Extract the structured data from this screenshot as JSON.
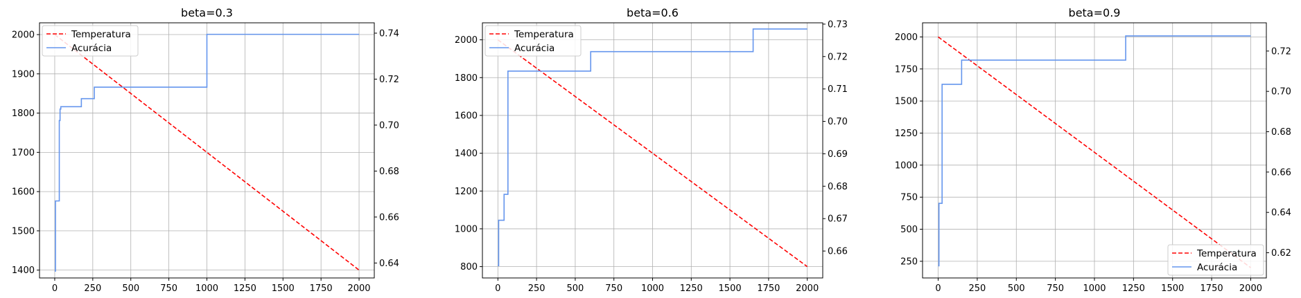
{
  "chart_data": [
    {
      "type": "line",
      "title": "beta=0.3",
      "grid": true,
      "legend_position": "top-left",
      "xlim": [
        -100,
        2100
      ],
      "xticks": [
        0,
        250,
        500,
        750,
        1000,
        1250,
        1500,
        1750,
        2000
      ],
      "ylim_left": [
        1380,
        2030
      ],
      "yticks_left": [
        1400,
        1500,
        1600,
        1700,
        1800,
        1900,
        2000
      ],
      "ylim_right": [
        0.6335,
        0.7445
      ],
      "yticks_right": [
        0.64,
        0.66,
        0.68,
        0.7,
        0.72,
        0.74
      ],
      "series": [
        {
          "name": "Temperatura",
          "axis": "left",
          "style": "dashed",
          "color": "#ff0000",
          "x": [
            0,
            2000
          ],
          "y": [
            2000,
            1400
          ]
        },
        {
          "name": "Acurácia",
          "axis": "right",
          "style": "step",
          "color": "#6495ed",
          "x": [
            0,
            5,
            30,
            35,
            40,
            175,
            260,
            1000,
            2000
          ],
          "y": [
            0.6365,
            0.667,
            0.702,
            0.707,
            0.708,
            0.7115,
            0.7165,
            0.7395,
            0.7395
          ]
        }
      ]
    },
    {
      "type": "line",
      "title": "beta=0.6",
      "grid": true,
      "legend_position": "top-left",
      "xlim": [
        -100,
        2100
      ],
      "xticks": [
        0,
        250,
        500,
        750,
        1000,
        1250,
        1500,
        1750,
        2000
      ],
      "ylim_left": [
        740,
        2090
      ],
      "yticks_left": [
        800,
        1000,
        1200,
        1400,
        1600,
        1800,
        2000
      ],
      "ylim_right": [
        0.6517,
        0.7304
      ],
      "yticks_right": [
        0.66,
        0.67,
        0.68,
        0.69,
        0.7,
        0.71,
        0.72,
        0.73
      ],
      "series": [
        {
          "name": "Temperatura",
          "axis": "left",
          "style": "dashed",
          "color": "#ff0000",
          "x": [
            0,
            2000
          ],
          "y": [
            2000,
            800
          ]
        },
        {
          "name": "Acurácia",
          "axis": "right",
          "style": "step",
          "color": "#6495ed",
          "x": [
            0,
            5,
            40,
            65,
            600,
            1650,
            2000
          ],
          "y": [
            0.6555,
            0.6695,
            0.6775,
            0.7155,
            0.7215,
            0.7285,
            0.7285
          ]
        }
      ]
    },
    {
      "type": "line",
      "title": "beta=0.9",
      "grid": true,
      "legend_position": "bottom-right",
      "xlim": [
        -100,
        2100
      ],
      "xticks": [
        0,
        250,
        500,
        750,
        1000,
        1250,
        1500,
        1750,
        2000
      ],
      "ylim_left": [
        120,
        2110
      ],
      "yticks_left": [
        250,
        500,
        750,
        1000,
        1250,
        1500,
        1750,
        2000
      ],
      "ylim_right": [
        0.6075,
        0.734
      ],
      "yticks_right": [
        0.62,
        0.64,
        0.66,
        0.68,
        0.7,
        0.72
      ],
      "series": [
        {
          "name": "Temperatura",
          "axis": "left",
          "style": "dashed",
          "color": "#ff0000",
          "x": [
            0,
            2000
          ],
          "y": [
            2000,
            200
          ]
        },
        {
          "name": "Acurácia",
          "axis": "right",
          "style": "step",
          "color": "#6495ed",
          "x": [
            0,
            5,
            25,
            150,
            1200,
            2000
          ],
          "y": [
            0.6135,
            0.6445,
            0.7035,
            0.7155,
            0.7275,
            0.7275
          ]
        }
      ]
    }
  ]
}
